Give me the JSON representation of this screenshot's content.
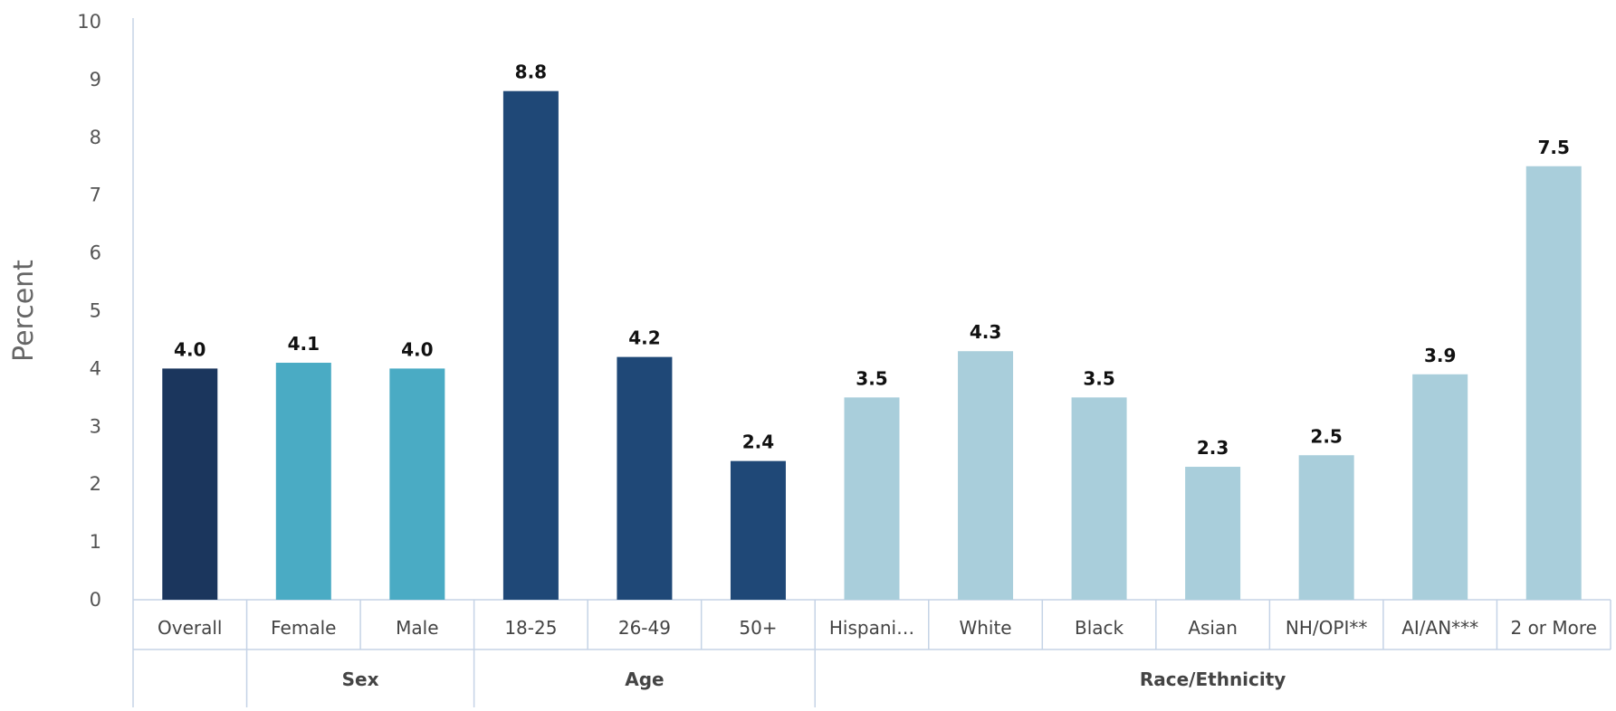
{
  "chart_data": {
    "type": "bar",
    "ylabel": "Percent",
    "xlabel": "",
    "ylim": [
      0,
      10
    ],
    "yticks": [
      "0",
      "1",
      "2",
      "3",
      "4",
      "5",
      "6",
      "7",
      "8",
      "9",
      "10"
    ],
    "grid": false,
    "categories": [
      "Overall",
      "Female",
      "Male",
      "18-25",
      "26-49",
      "50+",
      "Hispani…",
      "White",
      "Black",
      "Asian",
      "NH/OPI**",
      "AI/AN***",
      "2 or More"
    ],
    "values": [
      4.0,
      4.1,
      4.0,
      8.8,
      4.2,
      2.4,
      3.5,
      4.3,
      3.5,
      2.3,
      2.5,
      3.9,
      7.5
    ],
    "data_labels": [
      "4.0",
      "4.1",
      "4.0",
      "8.8",
      "4.2",
      "2.4",
      "3.5",
      "4.3",
      "3.5",
      "2.3",
      "2.5",
      "3.9",
      "7.5"
    ],
    "groups": [
      {
        "name": "",
        "start": 0,
        "count": 1
      },
      {
        "name": "Sex",
        "start": 1,
        "count": 2
      },
      {
        "name": "Age",
        "start": 3,
        "count": 3
      },
      {
        "name": "Race/Ethnicity",
        "start": 6,
        "count": 7
      }
    ],
    "colors": [
      "#1b365d",
      "#4aabc4",
      "#4aabc4",
      "#1f4877",
      "#1f4877",
      "#1f4877",
      "#a9cedb",
      "#a9cedb",
      "#a9cedb",
      "#a9cedb",
      "#a9cedb",
      "#a9cedb",
      "#a9cedb"
    ],
    "axis_color": "#c5d3e6"
  }
}
